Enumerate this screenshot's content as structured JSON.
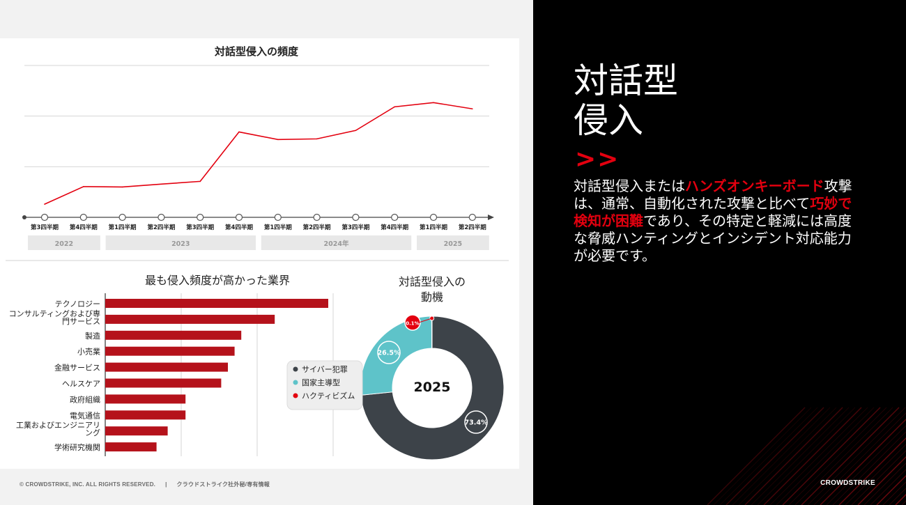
{
  "line_chart": {
    "title": "対話型侵入の頻度",
    "quarters": [
      "第3四半期",
      "第4四半期",
      "第1四半期",
      "第2四半期",
      "第3四半期",
      "第4四半期",
      "第1四半期",
      "第2四半期",
      "第3四半期",
      "第4四半期",
      "第1四半期",
      "第2四半期"
    ],
    "years": [
      {
        "label": "2022",
        "span": [
          0,
          1
        ]
      },
      {
        "label": "2023",
        "span": [
          2,
          5
        ]
      },
      {
        "label": "2024年",
        "span": [
          6,
          9
        ]
      },
      {
        "label": "2025",
        "span": [
          10,
          11
        ]
      }
    ]
  },
  "bar_chart": {
    "title": "最も侵入頻度が高かった業界",
    "categories": [
      "テクノロジー",
      "コンサルティングおよび専門サービス",
      "製造",
      "小売業",
      "金融サービス",
      "ヘルスケア",
      "政府組織",
      "電気通信",
      "工業およびエンジニアリング",
      "学術研究機関"
    ],
    "label_lines": [
      [
        "テクノロジー"
      ],
      [
        "コンサルティングおよび専",
        "門サービス"
      ],
      [
        "製造"
      ],
      [
        "小売業"
      ],
      [
        "金融サービス"
      ],
      [
        "ヘルスケア"
      ],
      [
        "政府組織"
      ],
      [
        "電気通信"
      ],
      [
        "工業およびエンジニアリ",
        "ング"
      ],
      [
        "学術研究機関"
      ]
    ]
  },
  "donut_chart": {
    "title_line1": "対話型侵入の",
    "title_line2": "動機",
    "center_label": "2025",
    "legend": [
      {
        "name": "サイバー犯罪",
        "color": "#3d4349"
      },
      {
        "name": "国家主導型",
        "color": "#5ec3c9"
      },
      {
        "name": "ハクティビズム",
        "color": "#e3000f"
      }
    ]
  },
  "chart_data": [
    {
      "type": "line",
      "title": "対話型侵入の頻度",
      "x": [
        "2022 第3四半期",
        "2022 第4四半期",
        "2023 第1四半期",
        "2023 第2四半期",
        "2023 第3四半期",
        "2023 第4四半期",
        "2024 第1四半期",
        "2024 第2四半期",
        "2024 第3四半期",
        "2024 第4四半期",
        "2025 第1四半期",
        "2025 第2四半期"
      ],
      "values": [
        0.78,
        1.82,
        1.8,
        1.97,
        2.13,
        5.06,
        4.61,
        4.65,
        5.15,
        6.55,
        6.8,
        6.43
      ],
      "ylim": [
        0,
        9
      ],
      "grid": true,
      "color": "#e3000f"
    },
    {
      "type": "bar",
      "orientation": "horizontal",
      "title": "最も侵入頻度が高かった業界",
      "categories": [
        "テクノロジー",
        "コンサルティングおよび専門サービス",
        "製造",
        "小売業",
        "金融サービス",
        "ヘルスケア",
        "政府組織",
        "電気通信",
        "工業およびエンジニアリング",
        "学術研究機関"
      ],
      "values": [
        100,
        76,
        61,
        58,
        55,
        52,
        36,
        36,
        28,
        23
      ],
      "xlim": [
        0,
        100
      ],
      "grid": true,
      "color": "#b5121b"
    },
    {
      "type": "pie",
      "style": "donut",
      "title": "対話型侵入の動機",
      "center_label": "2025",
      "labels": [
        "サイバー犯罪",
        "国家主導型",
        "ハクティビズム"
      ],
      "values": [
        73.4,
        26.5,
        0.1
      ],
      "value_labels": [
        "73.4%",
        "26.5%",
        "0.1%"
      ],
      "colors": [
        "#3d4349",
        "#5ec3c9",
        "#e3000f"
      ],
      "legend": "left"
    }
  ],
  "sidebar": {
    "title_line1": "対話型",
    "title_line2": "侵入",
    "arrows": ">>",
    "desc_1": "対話型侵入または",
    "desc_hl1": "ハンズオンキーボード",
    "desc_2": "攻撃は、通常、自動化された攻撃と比べて",
    "desc_hl2": "巧妙で検知が困難",
    "desc_3": "であり、その特定と軽減には高度な脅威ハンティングとインシデント対応能力が必要です。",
    "brand": "CROWDSTRIKE"
  },
  "footer": {
    "copyright": "© CROWDSTRIKE, INC. ALL RIGHTS RESERVED.",
    "separator": "|",
    "confidential": "クラウドストライク社外秘/専有情報"
  }
}
